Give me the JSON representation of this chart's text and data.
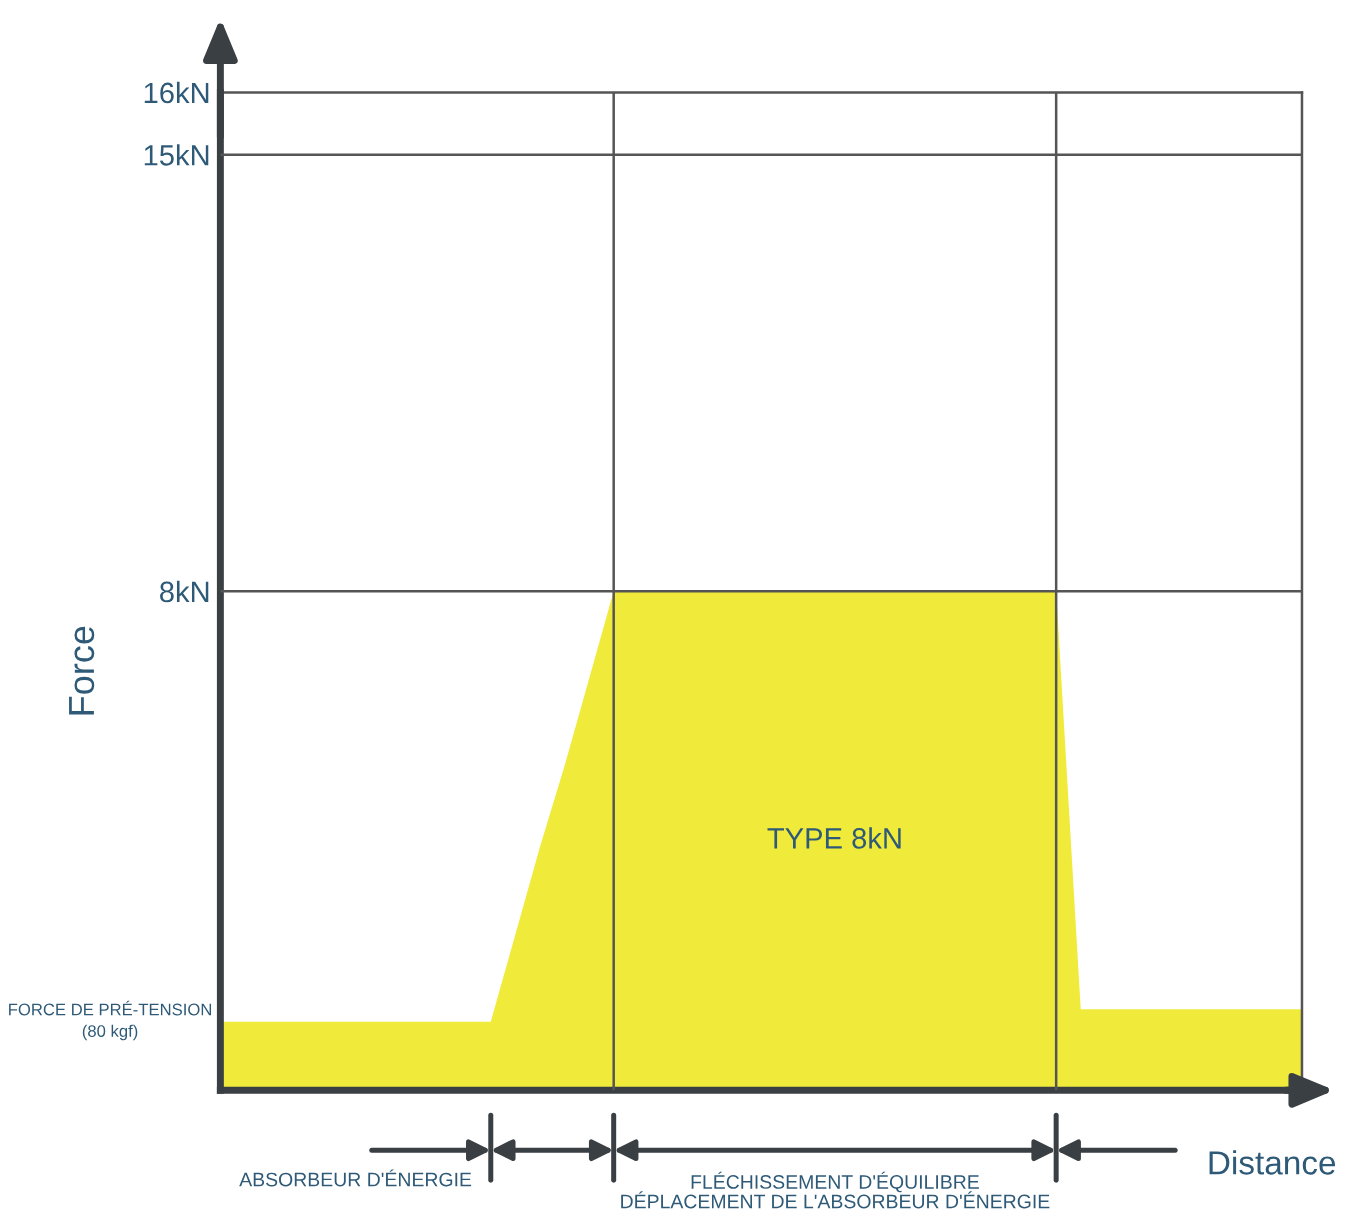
{
  "chart_data": {
    "type": "area",
    "xlabel": "Distance",
    "ylabel": "Force",
    "categories": [
      null,
      null,
      null,
      null,
      null,
      null,
      null,
      null,
      null,
      null,
      null,
      null,
      null,
      null,
      null,
      null,
      null,
      null,
      null,
      null,
      null,
      null,
      null,
      null,
      null,
      null,
      null,
      null,
      null,
      null,
      null,
      null,
      null,
      null,
      null,
      null,
      null,
      null,
      null,
      null,
      null,
      null,
      null,
      null,
      null
    ],
    "series": [
      {
        "color": "#f0eb3a",
        "values": [
          1.1,
          1.1,
          1.1,
          1.1,
          1.1,
          1.1,
          1.1,
          1.1,
          1.1,
          1.1,
          1.1,
          1.1,
          2.5,
          3.9,
          5.2,
          6.6,
          8,
          8,
          8,
          8,
          8,
          8,
          8,
          8,
          8,
          8,
          8,
          8,
          8,
          8,
          8,
          8,
          8,
          8,
          8,
          1.3,
          1.3,
          1.3,
          1.3,
          1.3,
          1.3,
          1.3,
          1.3,
          1.3,
          1.3
        ]
      }
    ],
    "ylim": [
      0,
      16
    ],
    "yticks": [
      {
        "value": 8,
        "label": "8kN"
      },
      {
        "value": 15,
        "label": "15kN"
      },
      {
        "value": 16,
        "label": "16kN"
      }
    ],
    "tick_labels": "y",
    "ref_lines": [
      {
        "axis": "y",
        "value": 15
      },
      {
        "axis": "y",
        "value": 8
      }
    ],
    "annotations": [
      "TYPE 8kN",
      "FORCE DE PRÉ-TENSION\n(80 kgf)",
      "ABSORBEUR D'ÉNERGIE",
      "FLÉCHISSEMENT D'ÉQUILIBRE\nDÉPLACEMENT DE L'ABSORBEUR D'ÉNERGIE"
    ],
    "legend": false,
    "grid": false
  }
}
